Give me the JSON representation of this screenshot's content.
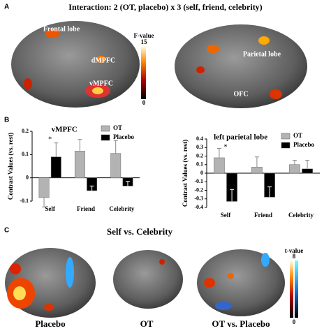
{
  "panel_a": {
    "letter": "A",
    "title": "Interaction: 2 (OT, placebo) x 3 (self, friend, celebrity)",
    "labels": [
      "Frontal lobe",
      "dMPFC",
      "vMPFC",
      "Parietal lobe",
      "OFC"
    ],
    "colorbar": {
      "label": "F-value",
      "max": 15,
      "min": 0
    }
  },
  "panel_b": {
    "letter": "B"
  },
  "chart_data": [
    {
      "type": "bar",
      "title": "vMPFC",
      "y_label": "Contrast Values (vs. rest)",
      "categories": [
        "Self",
        "Friend",
        "Celebrity"
      ],
      "series": [
        {
          "name": "OT",
          "color": "#b3b3b3",
          "values": [
            -0.085,
            0.115,
            0.105
          ],
          "errors": [
            0.04,
            0.05,
            0.055
          ]
        },
        {
          "name": "Placebo",
          "color": "#000000",
          "values": [
            0.09,
            -0.055,
            -0.035
          ],
          "errors": [
            0.06,
            0.02,
            0.02
          ]
        }
      ],
      "annotations": [
        "*"
      ],
      "ylim": [
        -0.1,
        0.2
      ],
      "yticks": [
        -0.1,
        0,
        0.1,
        0.2
      ]
    },
    {
      "type": "bar",
      "title": "left parietal lobe",
      "y_label": "Contrast Values (vs. rest)",
      "categories": [
        "Self",
        "Friend",
        "Celebrity"
      ],
      "series": [
        {
          "name": "OT",
          "color": "#b3b3b3",
          "values": [
            0.18,
            0.07,
            0.1
          ],
          "errors": [
            0.11,
            0.12,
            0.05
          ]
        },
        {
          "name": "Placebo",
          "color": "#000000",
          "values": [
            -0.33,
            -0.28,
            0.05
          ],
          "errors": [
            0.14,
            0.12,
            0.1
          ]
        }
      ],
      "annotations": [
        "*"
      ],
      "ylim": [
        -0.4,
        0.4
      ],
      "yticks": [
        -0.4,
        -0.3,
        -0.2,
        -0.1,
        0,
        0.1,
        0.2,
        0.3,
        0.4
      ]
    }
  ],
  "panel_c": {
    "letter": "C",
    "title": "Self vs. Celebrity",
    "labels": [
      "Placebo",
      "OT",
      "OT vs. Placebo"
    ],
    "colorbar": {
      "label": "t-value",
      "max": 8,
      "min": 0
    }
  }
}
